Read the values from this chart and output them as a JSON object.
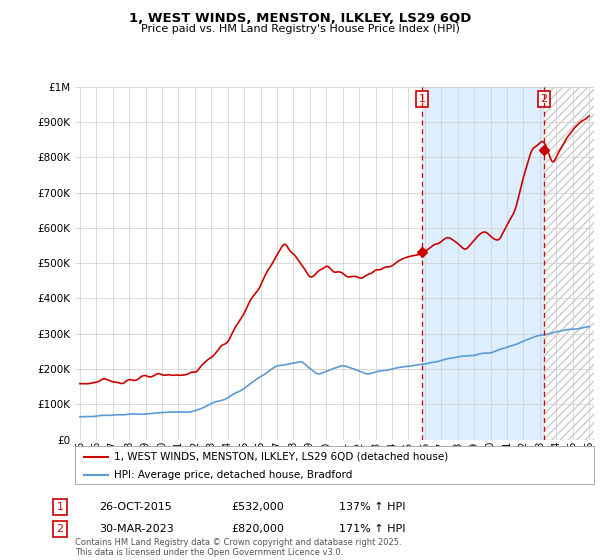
{
  "title": "1, WEST WINDS, MENSTON, ILKLEY, LS29 6QD",
  "subtitle": "Price paid vs. HM Land Registry's House Price Index (HPI)",
  "legend_line1": "1, WEST WINDS, MENSTON, ILKLEY, LS29 6QD (detached house)",
  "legend_line2": "HPI: Average price, detached house, Bradford",
  "sale1_label": "1",
  "sale1_date": "26-OCT-2015",
  "sale1_price": "£532,000",
  "sale1_hpi": "137% ↑ HPI",
  "sale2_label": "2",
  "sale2_date": "30-MAR-2023",
  "sale2_price": "£820,000",
  "sale2_hpi": "171% ↑ HPI",
  "footer": "Contains HM Land Registry data © Crown copyright and database right 2025.\nThis data is licensed under the Open Government Licence v3.0.",
  "red_color": "#cc0000",
  "blue_color": "#5b9bd5",
  "background_color": "#ffffff",
  "grid_color": "#cccccc",
  "highlight_color": "#ddeeff",
  "ylim": [
    0,
    1000000
  ],
  "yticks": [
    0,
    100000,
    200000,
    300000,
    400000,
    500000,
    600000,
    700000,
    800000,
    900000,
    1000000
  ],
  "x_start_year": 1995,
  "x_end_year": 2026,
  "sale1_year": 2015.82,
  "sale2_year": 2023.25,
  "sale1_price_val": 532000,
  "sale2_price_val": 820000
}
